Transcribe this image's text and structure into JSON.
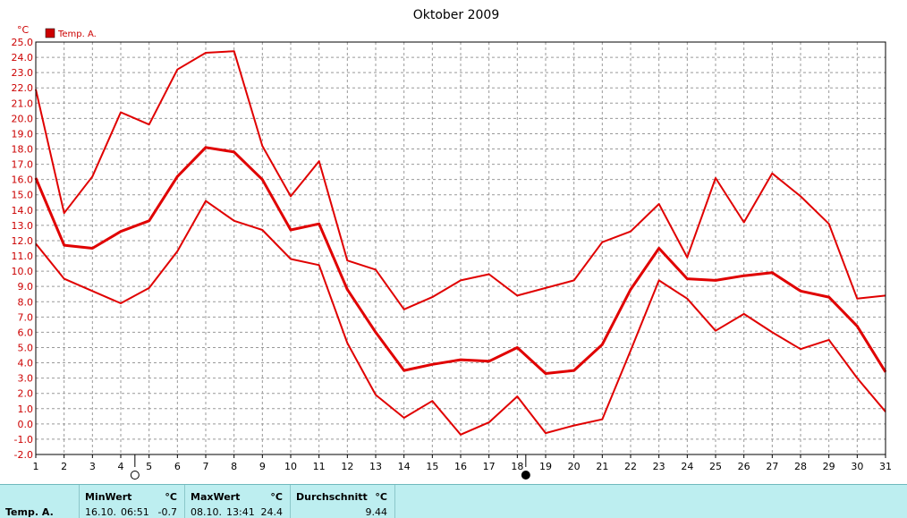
{
  "chart_data": {
    "type": "line",
    "title": "Oktober 2009",
    "ylabel": "°C",
    "ylim": [
      -2.0,
      25.0
    ],
    "xlim": [
      1,
      31
    ],
    "grid": true,
    "legend_position": "top-left",
    "legend": [
      {
        "label": "Temp. A.",
        "color": "#cc0000"
      }
    ],
    "x": [
      1,
      2,
      3,
      4,
      5,
      6,
      7,
      8,
      9,
      10,
      11,
      12,
      13,
      14,
      15,
      16,
      17,
      18,
      19,
      20,
      21,
      22,
      23,
      24,
      25,
      26,
      27,
      28,
      29,
      30,
      31
    ],
    "x_tick_labels": [
      "1",
      "2",
      "3",
      "4",
      "5",
      "6",
      "7",
      "8",
      "9",
      "10",
      "11",
      "12",
      "13",
      "14",
      "15",
      "16",
      "17",
      "18",
      "19",
      "20",
      "21",
      "22",
      "23",
      "24",
      "25",
      "26",
      "27",
      "28",
      "29",
      "30",
      "31"
    ],
    "y_tick_labels": [
      "-2.0",
      "-1.0",
      "0.0",
      "1.0",
      "2.0",
      "3.0",
      "4.0",
      "5.0",
      "6.0",
      "7.0",
      "8.0",
      "9.0",
      "10.0",
      "11.0",
      "12.0",
      "13.0",
      "14.0",
      "15.0",
      "16.0",
      "17.0",
      "18.0",
      "19.0",
      "20.0",
      "21.0",
      "22.0",
      "23.0",
      "24.0",
      "25.0"
    ],
    "series": [
      {
        "name": "",
        "role": "max",
        "color": "#e00000",
        "values": [
          21.9,
          13.8,
          16.2,
          20.4,
          19.6,
          23.2,
          24.3,
          24.4,
          18.2,
          14.9,
          17.2,
          10.7,
          10.1,
          7.5,
          8.3,
          9.4,
          9.8,
          8.4,
          8.9,
          9.4,
          11.9,
          12.6,
          14.4,
          10.9,
          16.1,
          13.2,
          16.4,
          14.9,
          13.1,
          8.2,
          8.4
        ]
      },
      {
        "name": "",
        "role": "avg",
        "color": "#e00000",
        "values": [
          16.1,
          11.7,
          11.5,
          12.6,
          13.3,
          16.2,
          18.1,
          17.8,
          16.0,
          12.7,
          13.1,
          8.8,
          6.0,
          3.5,
          3.9,
          4.2,
          4.1,
          5.0,
          3.3,
          3.5,
          5.2,
          8.8,
          11.5,
          9.5,
          9.4,
          9.7,
          9.9,
          8.7,
          8.3,
          6.4,
          3.4
        ]
      },
      {
        "name": "",
        "role": "min",
        "color": "#e00000",
        "values": [
          11.8,
          9.5,
          8.7,
          7.9,
          8.9,
          11.3,
          14.6,
          13.3,
          12.7,
          10.8,
          10.4,
          5.3,
          1.9,
          0.4,
          1.5,
          -0.7,
          0.1,
          1.8,
          -0.6,
          -0.1,
          0.3,
          4.8,
          9.4,
          8.2,
          6.1,
          7.2,
          6.0,
          4.9,
          5.5,
          3.0,
          0.8
        ]
      }
    ],
    "moon_phases": [
      {
        "day": 4.5,
        "phase": "full-moon"
      },
      {
        "day": 18.3,
        "phase": "new-moon"
      }
    ]
  },
  "stats": {
    "row_label": "Temp. A.",
    "min_header": "MinWert",
    "min_unit": "°C",
    "min_date": "16.10.",
    "min_time": "06:51",
    "min_value": "-0.7",
    "max_header": "MaxWert",
    "max_unit": "°C",
    "max_date": "08.10.",
    "max_time": "13:41",
    "max_value": "24.4",
    "avg_header": "Durchschnitt",
    "avg_unit": "°C",
    "avg_value": "9.44"
  }
}
